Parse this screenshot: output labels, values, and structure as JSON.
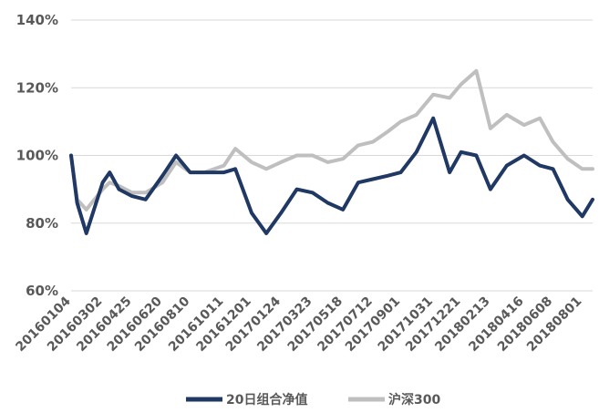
{
  "chart_data": {
    "type": "line",
    "title": "",
    "xlabel": "",
    "ylabel": "",
    "ylim": [
      60,
      140
    ],
    "yticks": [
      60,
      80,
      100,
      120,
      140
    ],
    "ytick_labels": [
      "60%",
      "80%",
      "100%",
      "120%",
      "140%"
    ],
    "grid": "horizontal",
    "legend_position": "bottom",
    "x_labels": [
      "20160104",
      "20160302",
      "20160425",
      "20160620",
      "20160810",
      "20161011",
      "20161201",
      "20170124",
      "20170323",
      "20170518",
      "20170712",
      "20170901",
      "20171031",
      "20171221",
      "20180213",
      "20180416",
      "20180608",
      "20180801"
    ],
    "series": [
      {
        "name": "20日组合净值",
        "color": "#203864",
        "x": [
          "20160104",
          "20160115",
          "20160201",
          "20160302",
          "20160315",
          "20160401",
          "20160425",
          "20160520",
          "20160620",
          "20160715",
          "20160810",
          "20160905",
          "20161011",
          "20161101",
          "20161201",
          "20161228",
          "20170124",
          "20170222",
          "20170323",
          "20170420",
          "20170518",
          "20170615",
          "20170712",
          "20170808",
          "20170901",
          "20170930",
          "20171031",
          "20171130",
          "20171221",
          "20180118",
          "20180213",
          "20180315",
          "20180416",
          "20180515",
          "20180608",
          "20180705",
          "20180801",
          "20180820"
        ],
        "values": [
          100,
          86,
          77,
          92,
          95,
          90,
          88,
          87,
          94,
          100,
          95,
          95,
          95,
          96,
          83,
          77,
          83,
          90,
          89,
          86,
          84,
          92,
          93,
          94,
          95,
          101,
          111,
          95,
          101,
          100,
          90,
          97,
          100,
          97,
          96,
          87,
          82,
          87
        ]
      },
      {
        "name": "沪深300",
        "color": "#bfbfbf",
        "x": [
          "20160104",
          "20160115",
          "20160201",
          "20160302",
          "20160315",
          "20160401",
          "20160425",
          "20160520",
          "20160620",
          "20160715",
          "20160810",
          "20160905",
          "20161011",
          "20161101",
          "20161201",
          "20161228",
          "20170124",
          "20170222",
          "20170323",
          "20170420",
          "20170518",
          "20170615",
          "20170712",
          "20170808",
          "20170901",
          "20170930",
          "20171031",
          "20171130",
          "20171221",
          "20180118",
          "20180213",
          "20180315",
          "20180416",
          "20180515",
          "20180608",
          "20180705",
          "20180801",
          "20180820"
        ],
        "values": [
          100,
          87,
          84,
          90,
          92,
          91,
          89,
          89,
          92,
          98,
          95,
          95,
          97,
          102,
          98,
          96,
          98,
          100,
          100,
          98,
          99,
          103,
          104,
          107,
          110,
          112,
          118,
          117,
          121,
          125,
          108,
          112,
          109,
          111,
          104,
          99,
          96,
          96
        ]
      }
    ]
  }
}
